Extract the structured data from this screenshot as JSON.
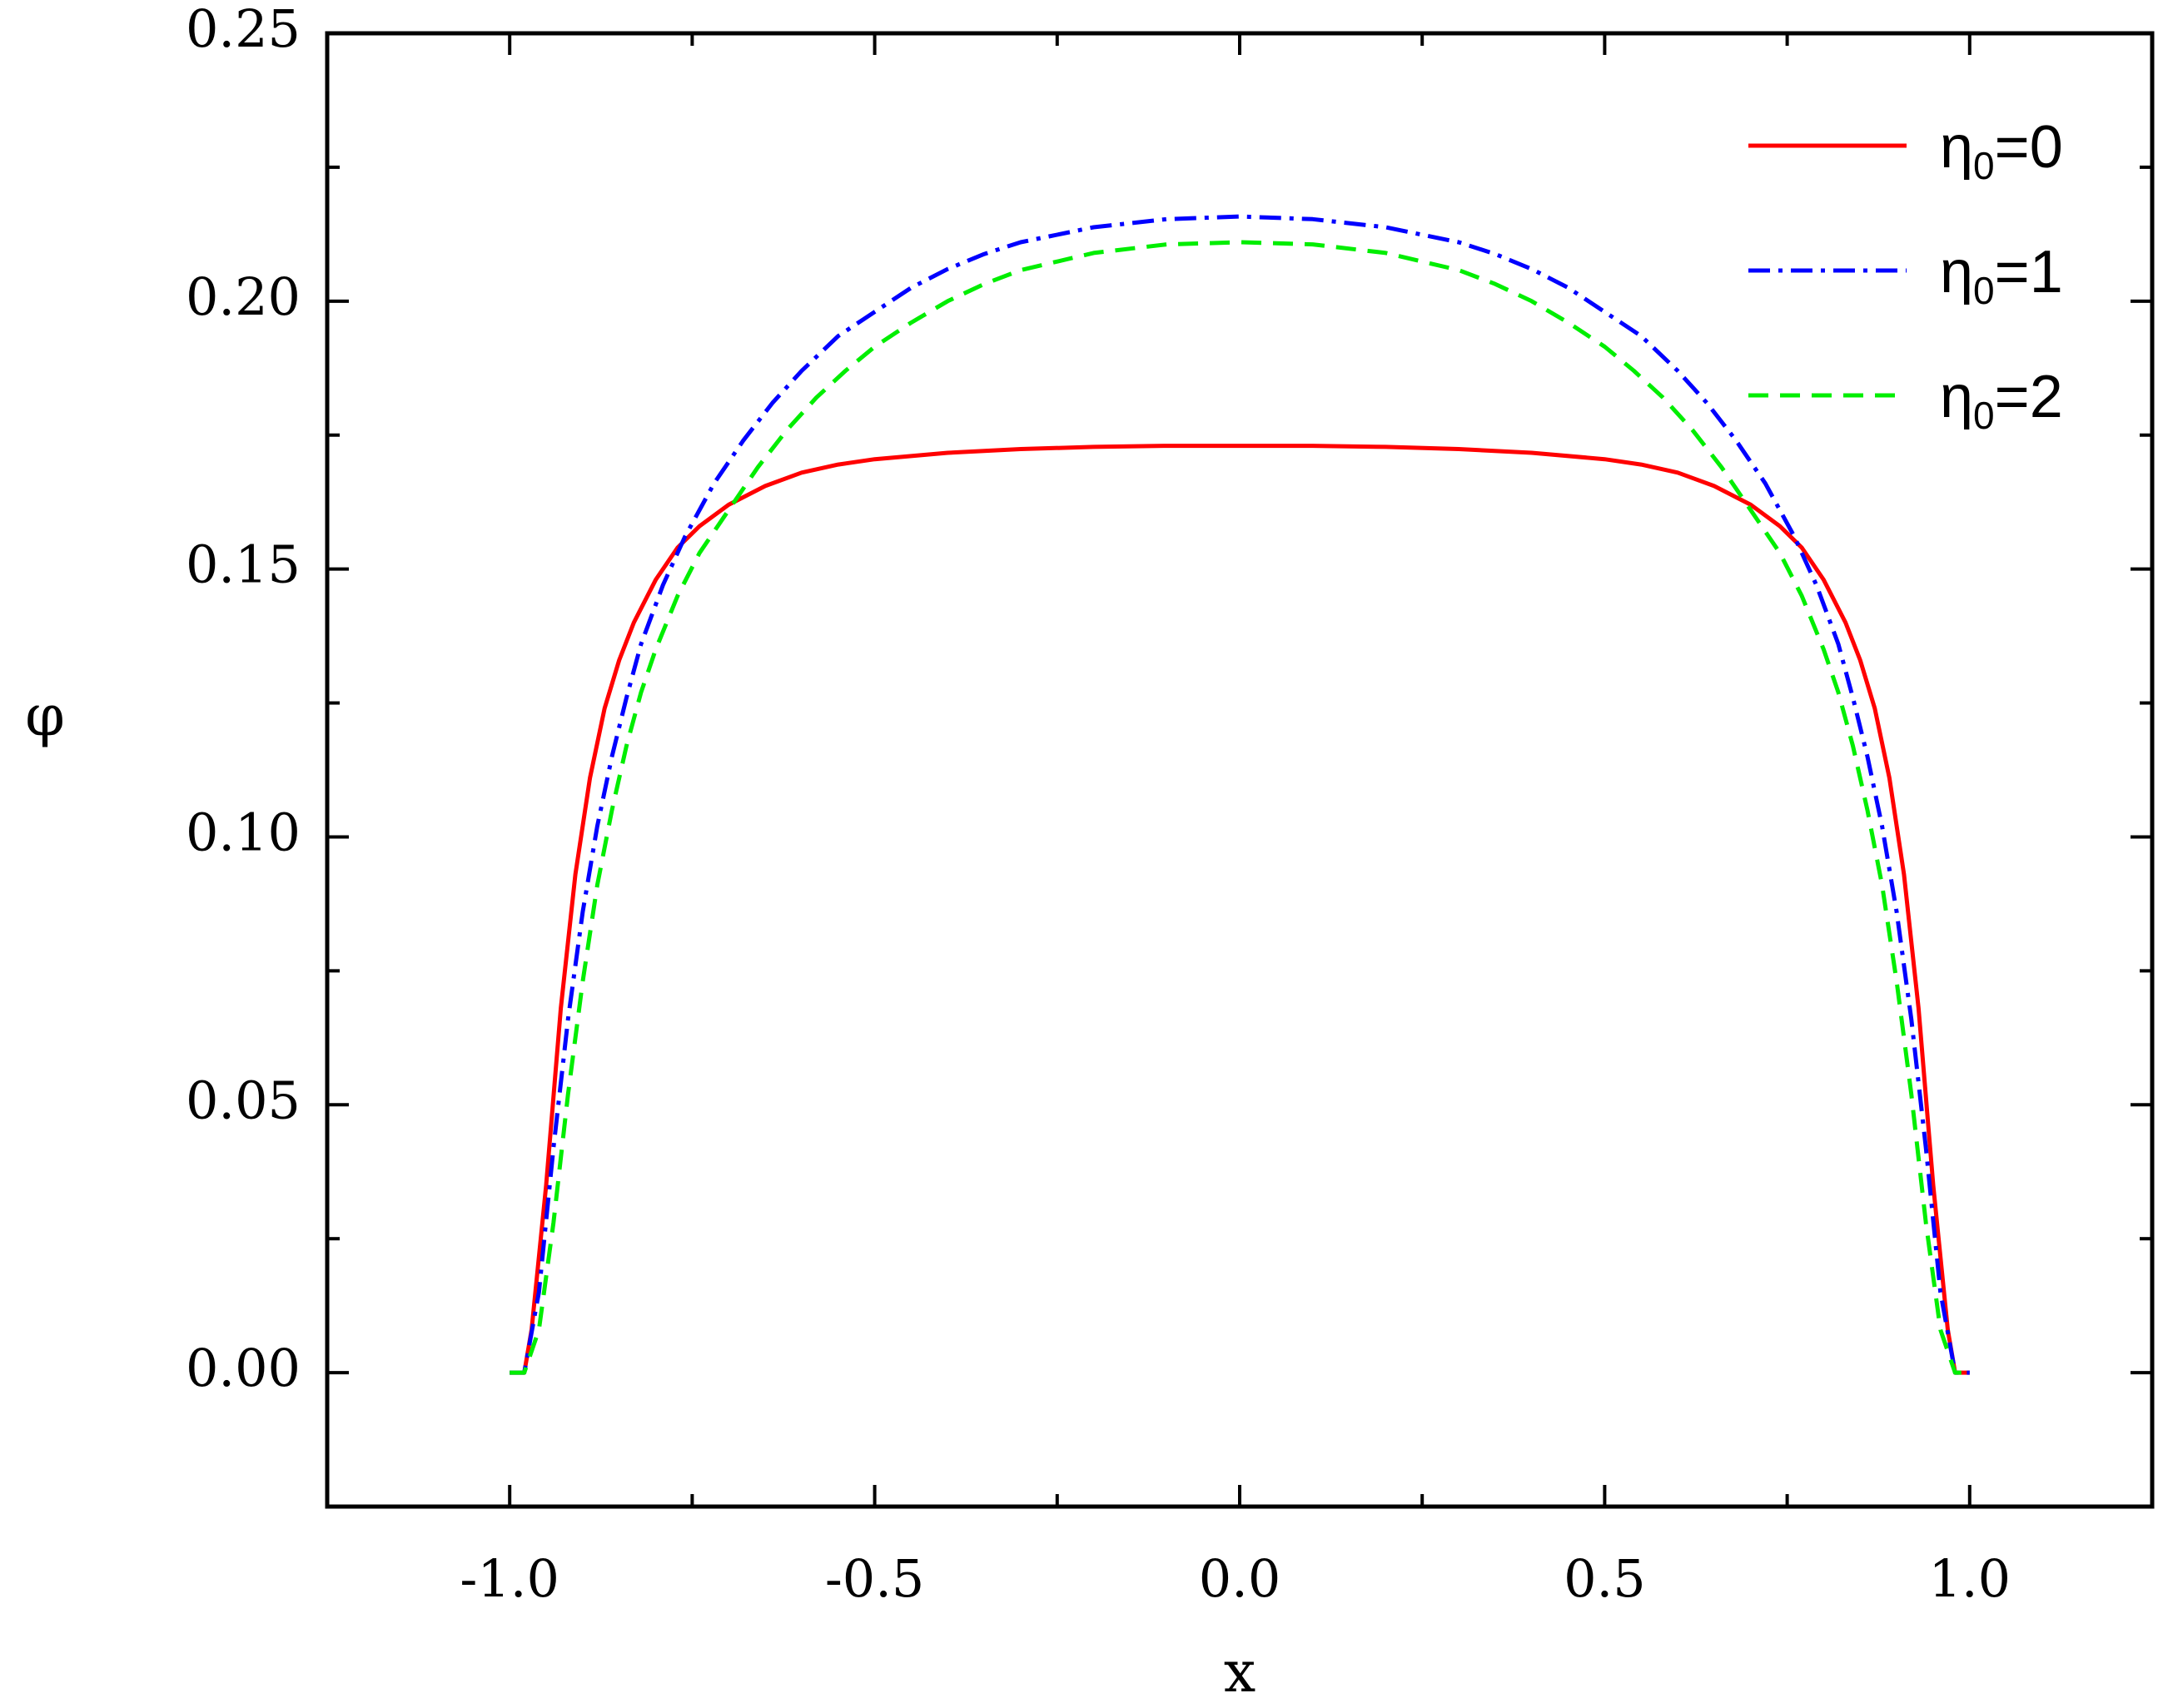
{
  "chart_data": {
    "type": "line",
    "title": "",
    "xlabel": "x",
    "ylabel": "φ",
    "xlim": [
      -1.25,
      1.25
    ],
    "ylim": [
      -0.025,
      0.25
    ],
    "x_ticks": [
      -1.0,
      -0.5,
      0.0,
      0.5,
      1.0
    ],
    "x_tick_labels": [
      "-1.0",
      "-0.5",
      "0.0",
      "0.5",
      "1.0"
    ],
    "y_ticks": [
      0.0,
      0.05,
      0.1,
      0.15,
      0.2,
      0.25
    ],
    "y_tick_labels": [
      "0.00",
      "0.05",
      "0.10",
      "0.15",
      "0.20",
      "0.25"
    ],
    "grid": false,
    "legend_position": "top-right",
    "series": [
      {
        "name": "η0=0",
        "label_main": "η",
        "label_sub": "0",
        "label_tail": "=0",
        "color": "#ff0000",
        "style": "solid",
        "x": [
          -1.0,
          -0.98,
          -0.97,
          -0.95,
          -0.93,
          -0.91,
          -0.89,
          -0.87,
          -0.85,
          -0.83,
          -0.8,
          -0.77,
          -0.74,
          -0.7,
          -0.65,
          -0.6,
          -0.55,
          -0.5,
          -0.4,
          -0.3,
          -0.2,
          -0.1,
          0.0,
          0.1,
          0.2,
          0.3,
          0.4,
          0.5,
          0.55,
          0.6,
          0.65,
          0.7,
          0.74,
          0.77,
          0.8,
          0.83,
          0.85,
          0.87,
          0.89,
          0.91,
          0.93,
          0.95,
          0.97,
          0.98,
          1.0
        ],
        "y": [
          0.0,
          0.0,
          0.008,
          0.035,
          0.068,
          0.093,
          0.111,
          0.124,
          0.133,
          0.14,
          0.148,
          0.154,
          0.158,
          0.162,
          0.1655,
          0.168,
          0.1695,
          0.1705,
          0.1717,
          0.1724,
          0.1728,
          0.173,
          0.173,
          0.173,
          0.1728,
          0.1724,
          0.1717,
          0.1705,
          0.1695,
          0.168,
          0.1655,
          0.162,
          0.158,
          0.154,
          0.148,
          0.14,
          0.133,
          0.124,
          0.111,
          0.093,
          0.068,
          0.035,
          0.008,
          0.0,
          0.0
        ]
      },
      {
        "name": "η0=1",
        "label_main": "η",
        "label_sub": "0",
        "label_tail": "=1",
        "color": "#0000ff",
        "style": "dash-dot",
        "x": [
          -1.0,
          -0.98,
          -0.96,
          -0.94,
          -0.92,
          -0.9,
          -0.88,
          -0.86,
          -0.84,
          -0.82,
          -0.79,
          -0.76,
          -0.72,
          -0.68,
          -0.64,
          -0.6,
          -0.55,
          -0.5,
          -0.45,
          -0.4,
          -0.35,
          -0.3,
          -0.2,
          -0.1,
          0.0,
          0.1,
          0.2,
          0.3,
          0.35,
          0.4,
          0.45,
          0.5,
          0.55,
          0.6,
          0.64,
          0.68,
          0.72,
          0.76,
          0.79,
          0.82,
          0.84,
          0.86,
          0.88,
          0.9,
          0.92,
          0.94,
          0.96,
          0.98,
          1.0
        ],
        "y": [
          0.0,
          0.0,
          0.015,
          0.042,
          0.066,
          0.086,
          0.102,
          0.115,
          0.126,
          0.136,
          0.147,
          0.156,
          0.166,
          0.174,
          0.181,
          0.187,
          0.1935,
          0.198,
          0.2025,
          0.206,
          0.2088,
          0.211,
          0.2138,
          0.2153,
          0.2158,
          0.2153,
          0.2138,
          0.211,
          0.2088,
          0.206,
          0.2025,
          0.198,
          0.1935,
          0.187,
          0.181,
          0.174,
          0.166,
          0.156,
          0.147,
          0.136,
          0.126,
          0.115,
          0.102,
          0.086,
          0.066,
          0.042,
          0.015,
          0.0,
          0.0
        ]
      },
      {
        "name": "η0=2",
        "label_main": "η",
        "label_sub": "0",
        "label_tail": "=2",
        "color": "#00ee00",
        "style": "dash",
        "x": [
          -1.0,
          -0.98,
          -0.96,
          -0.94,
          -0.92,
          -0.9,
          -0.88,
          -0.86,
          -0.84,
          -0.82,
          -0.8,
          -0.77,
          -0.74,
          -0.7,
          -0.66,
          -0.62,
          -0.58,
          -0.54,
          -0.5,
          -0.45,
          -0.4,
          -0.35,
          -0.3,
          -0.2,
          -0.1,
          0.0,
          0.1,
          0.2,
          0.3,
          0.35,
          0.4,
          0.45,
          0.5,
          0.54,
          0.58,
          0.62,
          0.66,
          0.7,
          0.74,
          0.77,
          0.8,
          0.82,
          0.84,
          0.86,
          0.88,
          0.9,
          0.92,
          0.94,
          0.96,
          0.98,
          1.0
        ],
        "y": [
          0.0,
          0.0,
          0.008,
          0.028,
          0.052,
          0.073,
          0.091,
          0.105,
          0.117,
          0.127,
          0.135,
          0.145,
          0.153,
          0.161,
          0.169,
          0.176,
          0.182,
          0.187,
          0.1915,
          0.196,
          0.2,
          0.2032,
          0.2058,
          0.209,
          0.2106,
          0.211,
          0.2106,
          0.209,
          0.2058,
          0.2032,
          0.2,
          0.196,
          0.1915,
          0.187,
          0.182,
          0.176,
          0.169,
          0.161,
          0.153,
          0.145,
          0.135,
          0.127,
          0.117,
          0.105,
          0.091,
          0.073,
          0.052,
          0.028,
          0.008,
          0.0,
          0.0
        ]
      }
    ]
  }
}
